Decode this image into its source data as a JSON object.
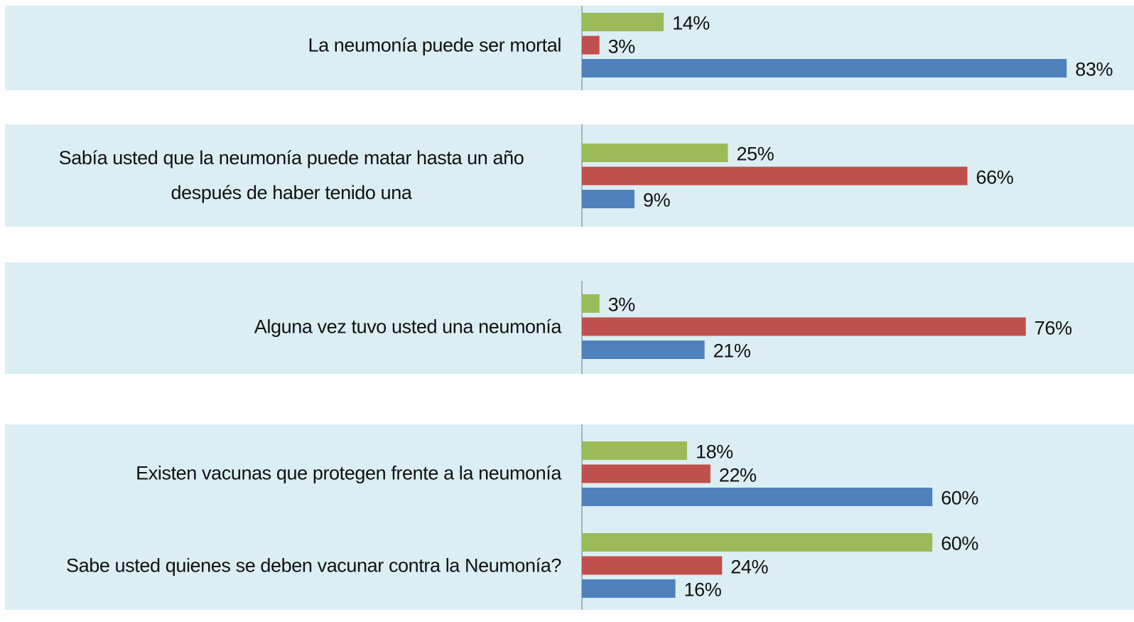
{
  "chart_data": {
    "type": "bar",
    "categories": [
      "La neumonía puede ser mortal",
      "Sabía usted que la neumonía puede matar hasta un año después de haber tenido una",
      "Alguna vez tuvo usted una neumonía",
      "Existen vacunas que protegen frente a la neumonía",
      "Sabe usted quienes se deben vacunar contra la Neumonía?"
    ],
    "series": [
      {
        "color": "#9bbb59",
        "values": [
          14,
          25,
          3,
          18,
          60
        ],
        "value_labels": [
          "14%",
          "25%",
          "3%",
          "18%",
          "60%"
        ]
      },
      {
        "color": "#c0504d",
        "values": [
          3,
          66,
          76,
          22,
          24
        ],
        "value_labels": [
          "3%",
          "66%",
          "76%",
          "22%",
          "24%"
        ]
      },
      {
        "color": "#4f81bd",
        "values": [
          83,
          9,
          21,
          60,
          16
        ],
        "value_labels": [
          "83%",
          "9%",
          "21%",
          "60%",
          "16%"
        ]
      }
    ]
  }
}
